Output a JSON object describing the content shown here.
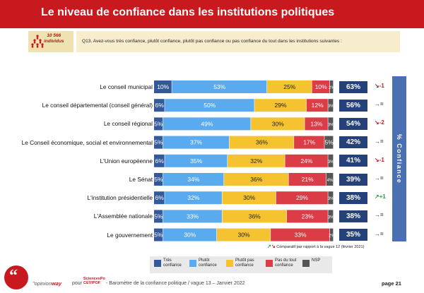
{
  "header": {
    "title": "Le niveau de confiance dans les institutions politiques",
    "sample_count": "10 566",
    "sample_unit": "individus",
    "question": "Q13. Avez-vous très confiance, plutôt confiance, plutôt pas confiance ou pas confiance du tout dans les institutions suivantes :"
  },
  "chart_data": {
    "type": "bar",
    "orientation": "horizontal",
    "stacked": true,
    "categories": [
      "Le conseil municipal",
      "Le conseil départemental (conseil général)",
      "Le conseil régional",
      "Le Conseil économique, social et environnemental",
      "L'Union européenne",
      "Le Sénat",
      "L'institution présidentielle",
      "L'Assemblée nationale",
      "Le gouvernement"
    ],
    "series": [
      {
        "name": "Très confiance",
        "color": "#34599b",
        "values": [
          10,
          6,
          5,
          5,
          6,
          5,
          6,
          5,
          5
        ]
      },
      {
        "name": "Plutôt confiance",
        "color": "#5aaaf0",
        "values": [
          53,
          50,
          49,
          37,
          35,
          34,
          32,
          33,
          30
        ]
      },
      {
        "name": "Plutôt pas confiance",
        "color": "#f5c230",
        "values": [
          25,
          29,
          30,
          36,
          32,
          36,
          30,
          36,
          30
        ]
      },
      {
        "name": "Pas du tout confiance",
        "color": "#db3c46",
        "values": [
          10,
          12,
          13,
          17,
          24,
          21,
          29,
          23,
          33
        ]
      },
      {
        "name": "NSP",
        "color": "#555555",
        "values": [
          2,
          3,
          3,
          5,
          3,
          4,
          3,
          3,
          2
        ]
      }
    ],
    "confidence_total": {
      "label": "% Confiance",
      "values": [
        "63%",
        "56%",
        "54%",
        "42%",
        "41%",
        "39%",
        "38%",
        "38%",
        "35%"
      ]
    },
    "trend": {
      "direction": [
        "down",
        "flat",
        "down",
        "flat",
        "down",
        "flat",
        "up",
        "flat",
        "flat"
      ],
      "labels": [
        "-1",
        "=",
        "-2",
        "=",
        "-1",
        "=",
        "+1",
        "=",
        "="
      ]
    },
    "note": "Comparatif par rapport à la vague 12 (février 2021)"
  },
  "footer": {
    "brand_prefix": "\"",
    "brand": "opinion",
    "brand_suffix": "way",
    "pour": "pour",
    "sciencespo_line1": "SciencesPo",
    "sciencespo_line2": "CEVIPOF",
    "barometre": "- Baromètre de la confiance politique / vague 13 – Janvier 2022",
    "page": "page 21"
  },
  "colors": {
    "title_bar": "#c8191f",
    "total_box": "#25417a",
    "vertical_label": "#4a6fb3"
  }
}
